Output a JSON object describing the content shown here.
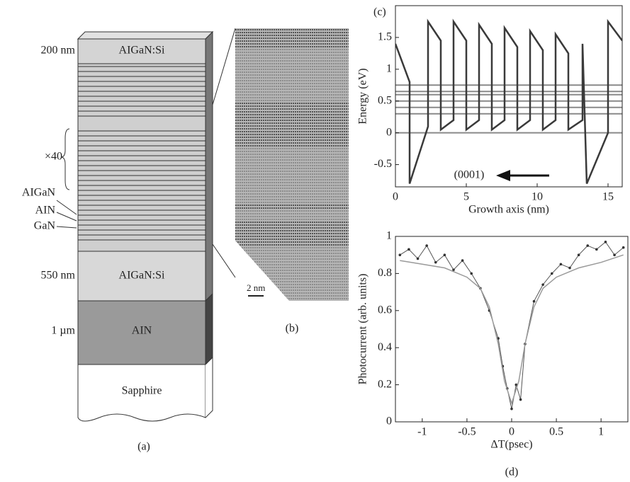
{
  "panel_a": {
    "label": "(a)",
    "thickness_labels": [
      "200 nm",
      "550 nm",
      "1 µm"
    ],
    "layer_labels": [
      "AIGaN:Si",
      "AIGaN:Si",
      "AIN",
      "Sapphire"
    ],
    "repeat": "×40",
    "sl_labels": [
      "AIGaN",
      "AIN",
      "GaN"
    ]
  },
  "panel_b": {
    "label": "(b)",
    "scale_bar": "2 nm"
  },
  "chart_data": [
    {
      "type": "line",
      "panel_label": "(c)",
      "x_label": "Growth axis (nm)",
      "y_label": "Energy (eV)",
      "annotation": "(0001)",
      "xlim": [
        0,
        16
      ],
      "ylim": [
        -0.85,
        2
      ],
      "xticks": [
        0,
        5,
        10,
        15
      ],
      "yticks": [
        -0.5,
        0,
        0.5,
        1,
        1.5
      ],
      "levels": [
        0,
        0.3,
        0.4,
        0.5,
        0.6,
        0.65,
        0.75
      ],
      "level_color": "#8a8a8a",
      "series": [
        {
          "color": "#3a3a3a",
          "x": [
            0,
            1,
            1,
            2.3,
            2.3,
            3.2,
            3.2,
            4.1,
            4.1,
            5,
            5,
            5.9,
            5.9,
            6.8,
            6.8,
            7.7,
            7.7,
            8.6,
            8.6,
            9.5,
            9.5,
            10.4,
            10.4,
            11.3,
            11.3,
            12.2,
            12.2,
            13.2,
            13.2,
            13.5,
            15,
            15,
            16
          ],
          "values": [
            1.4,
            0.8,
            -0.8,
            0.1,
            1.75,
            1.45,
            0.05,
            0.2,
            1.75,
            1.45,
            0.05,
            0.2,
            1.7,
            1.4,
            0.05,
            0.2,
            1.65,
            1.35,
            0.05,
            0.2,
            1.6,
            1.3,
            0.05,
            0.2,
            1.55,
            1.25,
            0.05,
            0.2,
            1.4,
            -0.8,
            0,
            1.75,
            1.45
          ]
        }
      ]
    },
    {
      "type": "line",
      "panel_label": "(d)",
      "x_label": "ΔT(psec)",
      "y_label": "Photocurrent (arb. units)",
      "xlim": [
        -1.3,
        1.3
      ],
      "ylim": [
        0,
        1
      ],
      "xticks": [
        -1,
        -0.5,
        0,
        0.5,
        1
      ],
      "yticks": [
        0,
        0.2,
        0.4,
        0.6,
        0.8,
        1
      ],
      "series": [
        {
          "color": "#555555",
          "markers": true,
          "x": [
            -1.25,
            -1.15,
            -1.05,
            -0.95,
            -0.85,
            -0.75,
            -0.65,
            -0.55,
            -0.45,
            -0.35,
            -0.25,
            -0.15,
            -0.1,
            -0.05,
            0,
            0.05,
            0.1,
            0.15,
            0.25,
            0.35,
            0.45,
            0.55,
            0.65,
            0.75,
            0.85,
            0.95,
            1.05,
            1.15,
            1.25
          ],
          "values": [
            0.9,
            0.93,
            0.88,
            0.95,
            0.86,
            0.9,
            0.82,
            0.87,
            0.8,
            0.72,
            0.6,
            0.45,
            0.3,
            0.18,
            0.07,
            0.2,
            0.12,
            0.42,
            0.65,
            0.74,
            0.8,
            0.85,
            0.83,
            0.9,
            0.95,
            0.93,
            0.97,
            0.9,
            0.94
          ]
        },
        {
          "color": "#9a9a9a",
          "x": [
            -1.25,
            -1,
            -0.75,
            -0.5,
            -0.35,
            -0.25,
            -0.15,
            -0.08,
            0,
            0.08,
            0.15,
            0.25,
            0.35,
            0.5,
            0.75,
            1,
            1.25
          ],
          "values": [
            0.87,
            0.85,
            0.83,
            0.78,
            0.72,
            0.62,
            0.42,
            0.22,
            0.1,
            0.22,
            0.42,
            0.62,
            0.72,
            0.78,
            0.83,
            0.86,
            0.9
          ]
        }
      ]
    }
  ]
}
